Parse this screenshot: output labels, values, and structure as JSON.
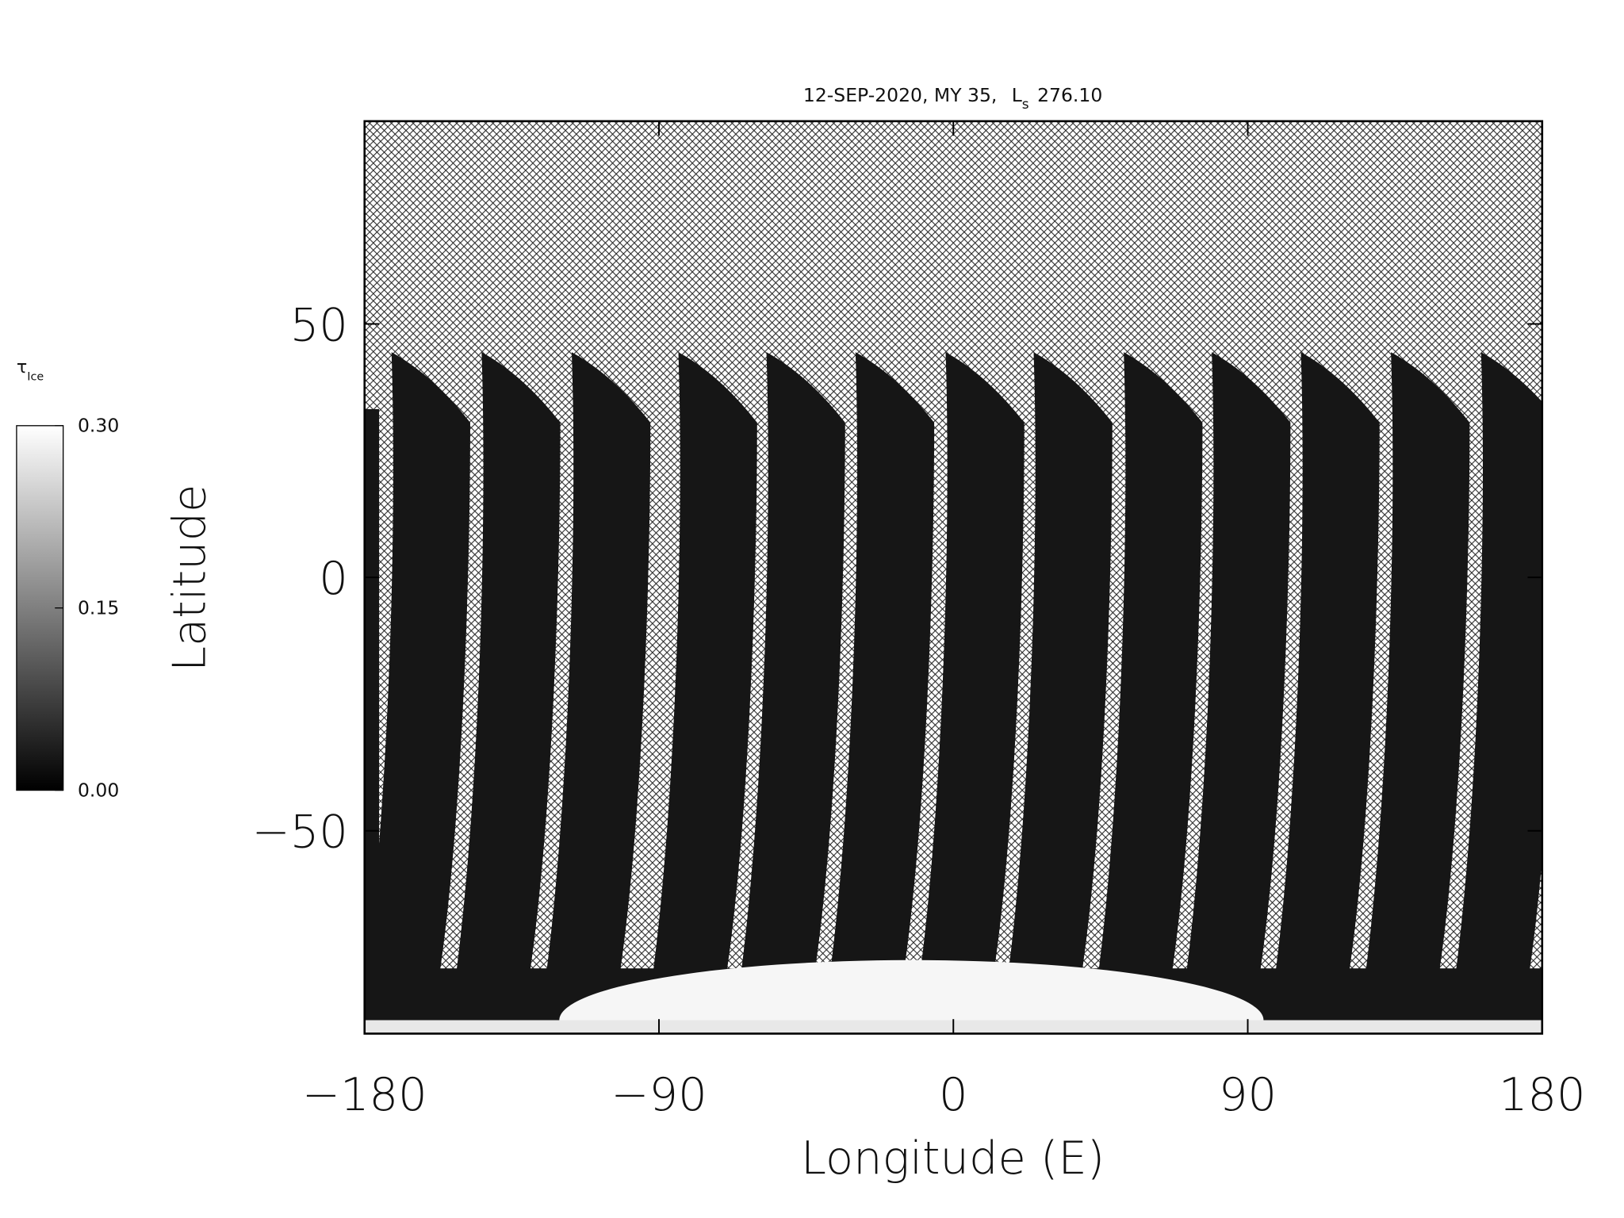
{
  "chart_data": {
    "type": "map",
    "title": {
      "text": "12-SEP-2020, MY 35,",
      "ls_label": "L",
      "ls_subscript": "s",
      "ls_value": "276.10"
    },
    "xlabel": "Longitude (E)",
    "ylabel": "Latitude",
    "xlim": [
      -180,
      180
    ],
    "xticks": [
      {
        "value": -180,
        "label": "−180"
      },
      {
        "value": -90,
        "label": "−90"
      },
      0,
      90,
      180
    ],
    "ylim": [
      -90,
      90
    ],
    "yticks": [
      {
        "value": -50,
        "label": "−50"
      },
      0,
      50
    ],
    "colorbar": {
      "label": "τ",
      "label_subscript": "Ice",
      "lim": [
        0,
        0.3
      ],
      "ticks": [
        {
          "value": 0,
          "label": "0.00"
        },
        {
          "value": 0.15,
          "label": "0.15"
        },
        {
          "value": 0.3,
          "label": "0.30"
        }
      ],
      "colors": [
        "#000000",
        "#ffffff"
      ]
    }
  }
}
